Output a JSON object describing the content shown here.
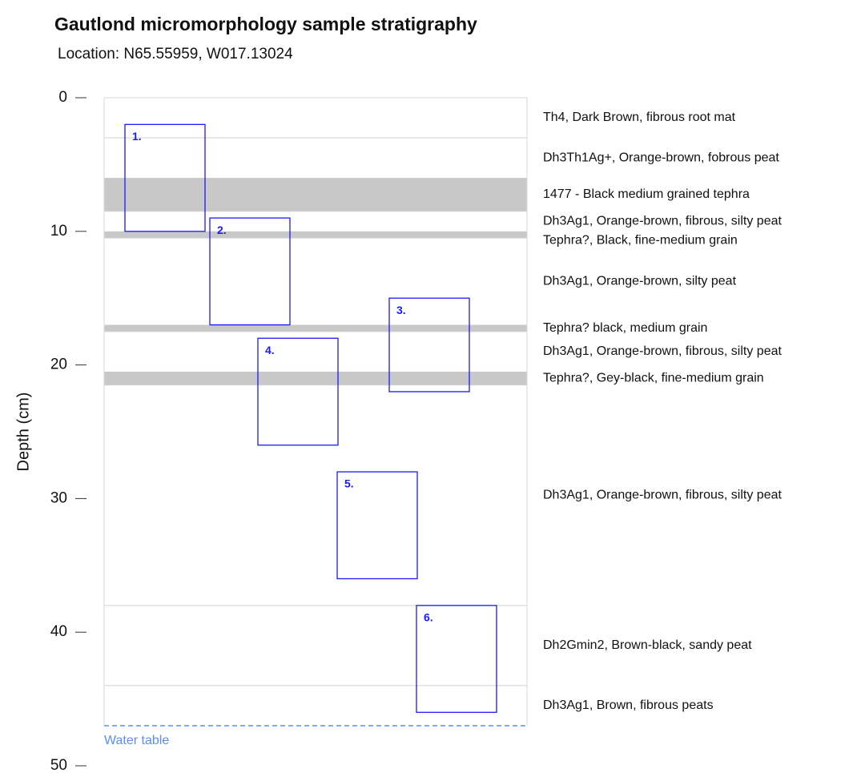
{
  "chart_data": {
    "type": "stratigraphy",
    "title": "Gautlond micromorphology sample stratigraphy",
    "subtitle": "Location: N65.55959, W017.13024",
    "ylabel": "Depth (cm)",
    "ylim": [
      0,
      50
    ],
    "yticks": [
      0,
      10,
      20,
      30,
      40,
      50
    ],
    "layers": [
      {
        "top": 0,
        "bottom": 3,
        "label": "Th4, Dark Brown, fibrous root mat"
      },
      {
        "top": 3,
        "bottom": 6,
        "label": "Dh3Th1Ag+, Orange-brown, fobrous peat"
      },
      {
        "top": 6,
        "bottom": 8.5,
        "label": "1477 - Black medium grained tephra",
        "color": "#c8c8c8"
      },
      {
        "top": 8.5,
        "bottom": 10,
        "label": "Dh3Ag1, Orange-brown, fibrous, silty peat"
      },
      {
        "top": 10,
        "bottom": 10.5,
        "label": "Tephra?, Black, fine-medium grain",
        "color": "#c8c8c8"
      },
      {
        "top": 10.5,
        "bottom": 17,
        "label": "Dh3Ag1, Orange-brown, silty peat"
      },
      {
        "top": 17,
        "bottom": 17.5,
        "label": "Tephra? black, medium grain",
        "color": "#c8c8c8"
      },
      {
        "top": 17.5,
        "bottom": 20.5,
        "label": "Dh3Ag1, Orange-brown, fibrous, silty peat"
      },
      {
        "top": 20.5,
        "bottom": 21.5,
        "label": "Tephra?, Gey-black, fine-medium grain",
        "color": "#c8c8c8"
      },
      {
        "top": 21.5,
        "bottom": 38,
        "label": "Dh3Ag1, Orange-brown, fibrous, silty peat"
      },
      {
        "top": 38,
        "bottom": 44,
        "label": "Dh2Gmin2, Brown-black, sandy peat"
      },
      {
        "top": 44,
        "bottom": 47,
        "label": "Dh3Ag1, Brown, fibrous peats"
      }
    ],
    "samples": [
      {
        "name": "1.",
        "top": 2,
        "bottom": 10
      },
      {
        "name": "2.",
        "top": 9,
        "bottom": 17
      },
      {
        "name": "3.",
        "top": 15,
        "bottom": 22
      },
      {
        "name": "4.",
        "top": 18,
        "bottom": 26
      },
      {
        "name": "5.",
        "top": 28,
        "bottom": 36
      },
      {
        "name": "6.",
        "top": 38,
        "bottom": 46
      }
    ],
    "sample_color": "#1a1aff",
    "water_table": {
      "depth": 47,
      "label": "Water table",
      "color": "#5b8def"
    }
  }
}
